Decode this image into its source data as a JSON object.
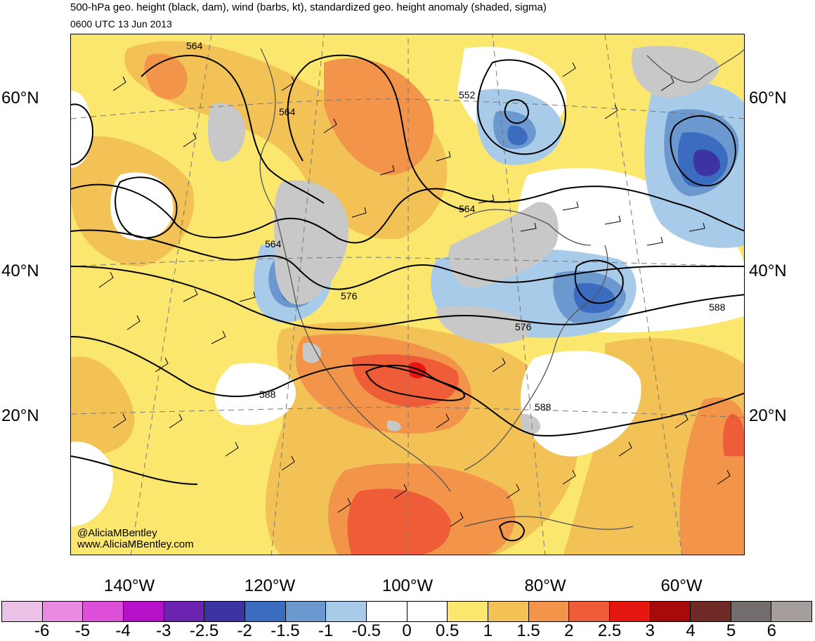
{
  "title": "500-hPa geo. height (black, dam), wind (barbs, kt), standardized geo. height anomaly (shaded, sigma)",
  "valid_time": "0600 UTC 13 Jun 2013",
  "latitude_labels": [
    "60°N",
    "40°N",
    "20°N"
  ],
  "longitude_labels": [
    "140°W",
    "120°W",
    "100°W",
    "80°W",
    "60°W"
  ],
  "contour_labels": [
    "564",
    "564",
    "564",
    "564",
    "552",
    "576",
    "576",
    "588",
    "588",
    "588"
  ],
  "credits": {
    "handle": "@AliciaMBentley",
    "website": "www.AliciaMBentley.com"
  },
  "colorbar": {
    "tick_labels": [
      "-6",
      "-5",
      "-4",
      "-3",
      "-2.5",
      "-2",
      "-1.5",
      "-1",
      "-0.5",
      "0",
      "0.5",
      "1",
      "1.5",
      "2",
      "2.5",
      "3",
      "4",
      "5",
      "6"
    ],
    "colors": [
      "#ebc1e8",
      "#e88ae2",
      "#dd4fd9",
      "#b611c9",
      "#6b24b0",
      "#3c34a2",
      "#3b6cbf",
      "#6c98d0",
      "#a7cbe9",
      "#ffffff",
      "#ffffff",
      "#fbe76d",
      "#f3c257",
      "#f2954a",
      "#ef5c38",
      "#e61710",
      "#a60a0b",
      "#6f2a28",
      "#726d6c",
      "#a69d9d"
    ]
  },
  "map_colors": {
    "ocean_base": "#fbe76d",
    "warm": "#f3c257",
    "hot": "#f2954a",
    "very_hot": "#ef5c38",
    "extreme": "#e61710",
    "cool": "#a7cbe9",
    "cold": "#6c98d0",
    "very_cold": "#3b6cbf",
    "deep_cold": "#3c34a2",
    "terrain_mask": "#c8c8c8",
    "neutral": "#ffffff"
  }
}
